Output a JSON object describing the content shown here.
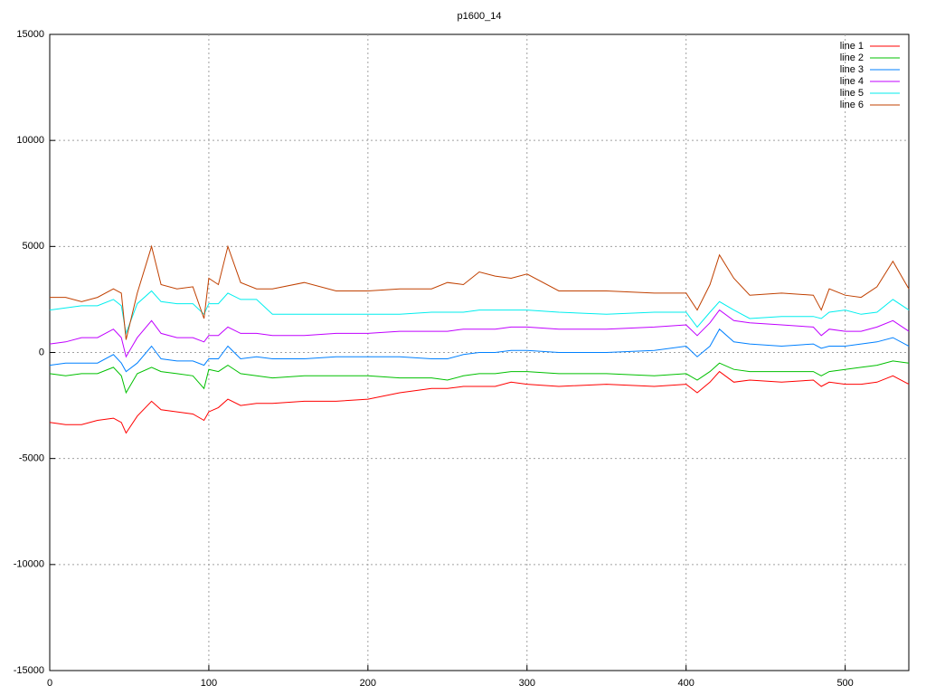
{
  "chart_data": {
    "type": "line",
    "title": "p1600_14",
    "x": [
      0,
      10,
      20,
      30,
      40,
      45,
      48,
      55,
      64,
      70,
      80,
      90,
      97,
      100,
      106,
      112,
      120,
      130,
      140,
      160,
      180,
      200,
      220,
      240,
      250,
      260,
      270,
      280,
      290,
      300,
      320,
      350,
      380,
      400,
      407,
      415,
      421,
      430,
      440,
      460,
      480,
      485,
      490,
      500,
      510,
      520,
      530,
      540
    ],
    "series": [
      {
        "name": "line 1",
        "color": "#ff0000",
        "values": [
          -3300,
          -3400,
          -3400,
          -3200,
          -3100,
          -3300,
          -3800,
          -3000,
          -2300,
          -2700,
          -2800,
          -2900,
          -3200,
          -2800,
          -2600,
          -2200,
          -2500,
          -2400,
          -2400,
          -2300,
          -2300,
          -2200,
          -1900,
          -1700,
          -1700,
          -1600,
          -1600,
          -1600,
          -1400,
          -1500,
          -1600,
          -1500,
          -1600,
          -1500,
          -1900,
          -1400,
          -900,
          -1400,
          -1300,
          -1400,
          -1300,
          -1600,
          -1400,
          -1500,
          -1500,
          -1400,
          -1100,
          -1500
        ]
      },
      {
        "name": "line 2",
        "color": "#00c000",
        "values": [
          -1000,
          -1100,
          -1000,
          -1000,
          -700,
          -1100,
          -1900,
          -1000,
          -700,
          -900,
          -1000,
          -1100,
          -1700,
          -800,
          -900,
          -600,
          -1000,
          -1100,
          -1200,
          -1100,
          -1100,
          -1100,
          -1200,
          -1200,
          -1300,
          -1100,
          -1000,
          -1000,
          -900,
          -900,
          -1000,
          -1000,
          -1100,
          -1000,
          -1300,
          -900,
          -500,
          -800,
          -900,
          -900,
          -900,
          -1100,
          -900,
          -800,
          -700,
          -600,
          -400,
          -500
        ]
      },
      {
        "name": "line 3",
        "color": "#0080ff",
        "values": [
          -600,
          -500,
          -500,
          -500,
          -100,
          -500,
          -900,
          -500,
          300,
          -300,
          -400,
          -400,
          -600,
          -300,
          -300,
          300,
          -300,
          -200,
          -300,
          -300,
          -200,
          -200,
          -200,
          -300,
          -300,
          -100,
          0,
          0,
          100,
          100,
          0,
          0,
          100,
          300,
          -200,
          300,
          1100,
          500,
          400,
          300,
          400,
          200,
          300,
          300,
          400,
          500,
          700,
          300
        ]
      },
      {
        "name": "line 4",
        "color": "#c000ff",
        "values": [
          400,
          500,
          700,
          700,
          1100,
          700,
          -200,
          700,
          1500,
          900,
          700,
          700,
          500,
          800,
          800,
          1200,
          900,
          900,
          800,
          800,
          900,
          900,
          1000,
          1000,
          1000,
          1100,
          1100,
          1100,
          1200,
          1200,
          1100,
          1100,
          1200,
          1300,
          800,
          1400,
          2000,
          1500,
          1400,
          1300,
          1200,
          800,
          1100,
          1000,
          1000,
          1200,
          1500,
          1000
        ]
      },
      {
        "name": "line 5",
        "color": "#00eeee",
        "values": [
          2000,
          2100,
          2200,
          2200,
          2500,
          2200,
          900,
          2300,
          2900,
          2400,
          2300,
          2300,
          1800,
          2300,
          2300,
          2800,
          2500,
          2500,
          1800,
          1800,
          1800,
          1800,
          1800,
          1900,
          1900,
          1900,
          2000,
          2000,
          2000,
          2000,
          1900,
          1800,
          1900,
          1900,
          1200,
          1900,
          2400,
          2000,
          1600,
          1700,
          1700,
          1600,
          1900,
          2000,
          1800,
          1900,
          2500,
          2000
        ]
      },
      {
        "name": "line 6",
        "color": "#c04000",
        "values": [
          2600,
          2600,
          2400,
          2600,
          3000,
          2800,
          600,
          2800,
          5000,
          3200,
          3000,
          3100,
          1600,
          3500,
          3200,
          5000,
          3300,
          3000,
          3000,
          3300,
          2900,
          2900,
          3000,
          3000,
          3300,
          3200,
          3800,
          3600,
          3500,
          3700,
          2900,
          2900,
          2800,
          2800,
          2000,
          3200,
          4600,
          3500,
          2700,
          2800,
          2700,
          2000,
          3000,
          2700,
          2600,
          3100,
          4300,
          3000
        ]
      }
    ],
    "xlim": [
      0,
      540
    ],
    "xticks": [
      0,
      100,
      200,
      300,
      400,
      500
    ],
    "ylim": [
      -15000,
      15000
    ],
    "yticks": [
      -15000,
      -10000,
      -5000,
      0,
      5000,
      10000,
      15000
    ],
    "grid": true,
    "legend": "top-right"
  }
}
